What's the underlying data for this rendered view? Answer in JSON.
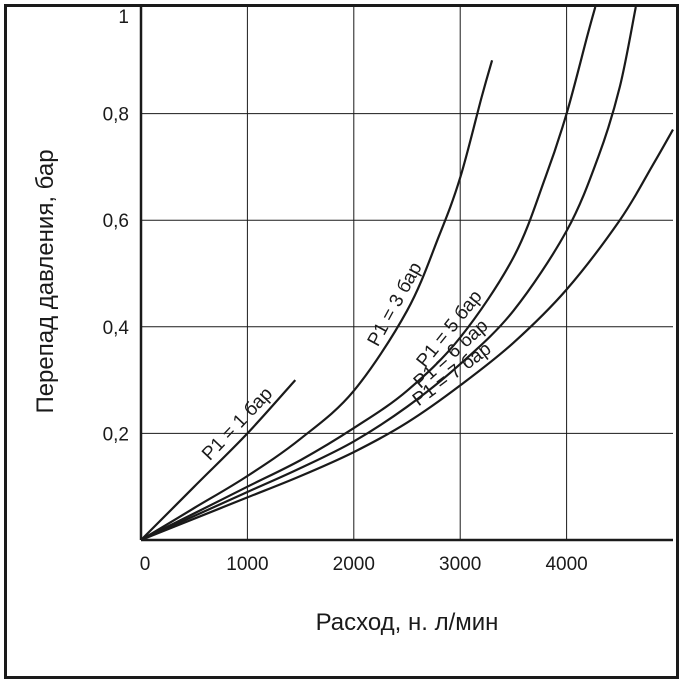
{
  "chart_data": {
    "type": "line",
    "title": "",
    "xlabel": "Расход, н. л/мин",
    "ylabel": "Перепад давления, бар",
    "xlim": [
      0,
      5000
    ],
    "ylim": [
      0,
      1
    ],
    "x_ticks": [
      0,
      1000,
      2000,
      3000,
      4000
    ],
    "x_tick_labels": [
      "0",
      "1000",
      "2000",
      "3000",
      "4000"
    ],
    "y_ticks": [
      0.2,
      0.4,
      0.6,
      0.8,
      1
    ],
    "y_tick_labels": [
      "0,2",
      "0,4",
      "0,6",
      "0,8",
      "1"
    ],
    "grid": true,
    "series": [
      {
        "name": "P1 = 1 бар",
        "x": [
          0,
          500,
          1000,
          1450
        ],
        "y": [
          0,
          0.1,
          0.2,
          0.3
        ]
      },
      {
        "name": "P1 = 3 бар",
        "x": [
          0,
          500,
          1000,
          1500,
          2000,
          2500,
          2800,
          3000,
          3200,
          3300
        ],
        "y": [
          0,
          0.06,
          0.12,
          0.19,
          0.28,
          0.43,
          0.57,
          0.68,
          0.83,
          0.9
        ]
      },
      {
        "name": "P1 = 5 бар",
        "x": [
          0,
          500,
          1000,
          1500,
          2000,
          2500,
          3000,
          3500,
          3800,
          4000,
          4200,
          4270
        ],
        "y": [
          0,
          0.05,
          0.1,
          0.15,
          0.21,
          0.28,
          0.38,
          0.53,
          0.68,
          0.8,
          0.95,
          1.0
        ]
      },
      {
        "name": "P1 = 6 бар",
        "x": [
          0,
          500,
          1000,
          1500,
          2000,
          2500,
          3000,
          3500,
          4000,
          4300,
          4500,
          4650
        ],
        "y": [
          0,
          0.045,
          0.09,
          0.135,
          0.185,
          0.25,
          0.33,
          0.43,
          0.58,
          0.72,
          0.85,
          1.0
        ]
      },
      {
        "name": "P1 = 7 бар",
        "x": [
          0,
          500,
          1000,
          1500,
          2000,
          2500,
          3000,
          3500,
          4000,
          4500,
          4800,
          5000
        ],
        "y": [
          0,
          0.04,
          0.08,
          0.12,
          0.165,
          0.22,
          0.29,
          0.37,
          0.47,
          0.6,
          0.7,
          0.77
        ]
      }
    ]
  }
}
